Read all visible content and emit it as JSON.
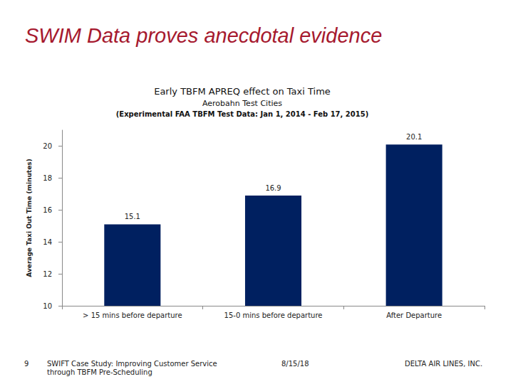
{
  "slide": {
    "heading": "SWIM Data proves anecdotal evidence",
    "footer": {
      "page": "9",
      "text": "SWIFT Case Study: Improving Customer Service through TBFM Pre-Scheduling",
      "date": "8/15/18",
      "company": "DELTA AIR LINES, INC."
    }
  },
  "chart_data": {
    "type": "bar",
    "title": "Early TBFM APREQ effect on Taxi Time",
    "subtitle": "Aerobahn Test Cities",
    "note": "(Experimental FAA TBFM Test Data: Jan 1, 2014 - Feb 17, 2015)",
    "ylabel": "Average Taxi Out Time (minutes)",
    "categories": [
      "> 15 mins before departure",
      "15-0 mins before departure",
      "After Departure"
    ],
    "values": [
      15.1,
      16.9,
      20.1
    ],
    "color": "#002060",
    "ylim": [
      10,
      21
    ],
    "yticks": [
      10,
      12,
      14,
      16,
      18,
      20
    ],
    "grid": false,
    "data_labels": true
  }
}
